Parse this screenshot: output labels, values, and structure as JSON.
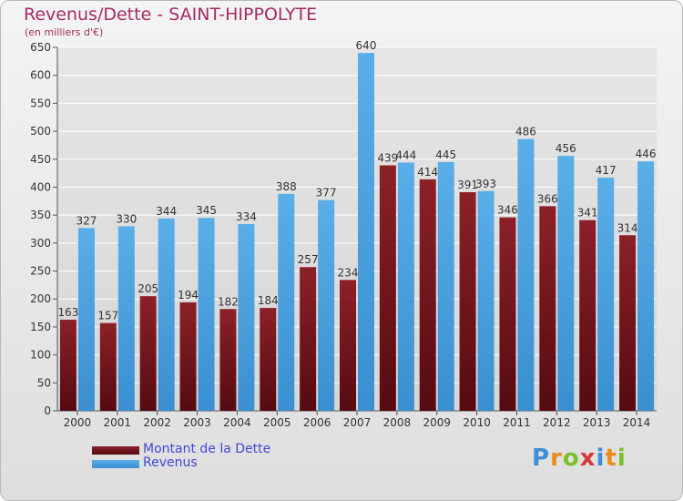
{
  "header": {
    "title": "Revenus/Dette - SAINT-HIPPOLYTE",
    "subtitle": "(en milliers d'€)"
  },
  "logo": {
    "text": "Proxiti",
    "letters": [
      "P",
      "r",
      "o",
      "x",
      "i",
      "t",
      "i"
    ],
    "colors": [
      "#3d8fd6",
      "#f08a1c",
      "#7bbf2a",
      "#d63a3a",
      "#3d8fd6",
      "#f08a1c",
      "#7bbf2a"
    ]
  },
  "colors": {
    "dette": "#7a1620",
    "dette_light": "#a0343a",
    "revenus": "#4ea3e0",
    "revenus_light": "#6cb8ee",
    "axis": "#555555",
    "grid": "#ffffff",
    "title": "#a62a62",
    "legend_text": "#4545d8"
  },
  "chart_data": {
    "type": "bar",
    "title": "Revenus/Dette - SAINT-HIPPOLYTE",
    "subtitle": "(en milliers d'€)",
    "categories": [
      "2000",
      "2001",
      "2002",
      "2003",
      "2004",
      "2005",
      "2006",
      "2007",
      "2008",
      "2009",
      "2010",
      "2011",
      "2012",
      "2013",
      "2014"
    ],
    "series": [
      {
        "name": "Montant de la Dette",
        "values": [
          163,
          157,
          205,
          194,
          182,
          184,
          257,
          234,
          439,
          414,
          391,
          346,
          366,
          341,
          314
        ],
        "labels": [
          "163",
          "157",
          "205",
          "194",
          "182",
          "184",
          "257",
          "234",
          "439",
          "414",
          "391",
          "346",
          "366",
          "341",
          "314"
        ]
      },
      {
        "name": "Revenus",
        "values": [
          327,
          330,
          344,
          345,
          334,
          388,
          377,
          640,
          444,
          445,
          393,
          486,
          456,
          417,
          446
        ],
        "labels": [
          "327",
          "330",
          "344",
          "345",
          "334",
          "388",
          "377",
          "640",
          "444",
          "445",
          "393",
          "486",
          "456",
          "417",
          "446"
        ]
      }
    ],
    "ylim": [
      0,
      650
    ],
    "yticks": [
      "0",
      "50",
      "100",
      "150",
      "200",
      "250",
      "300",
      "350",
      "400",
      "450",
      "500",
      "550",
      "600",
      "650"
    ],
    "grid": true,
    "legend_position": "bottom-left"
  },
  "legend": {
    "items": [
      {
        "label": "Montant de la Dette"
      },
      {
        "label": "Revenus"
      }
    ]
  }
}
